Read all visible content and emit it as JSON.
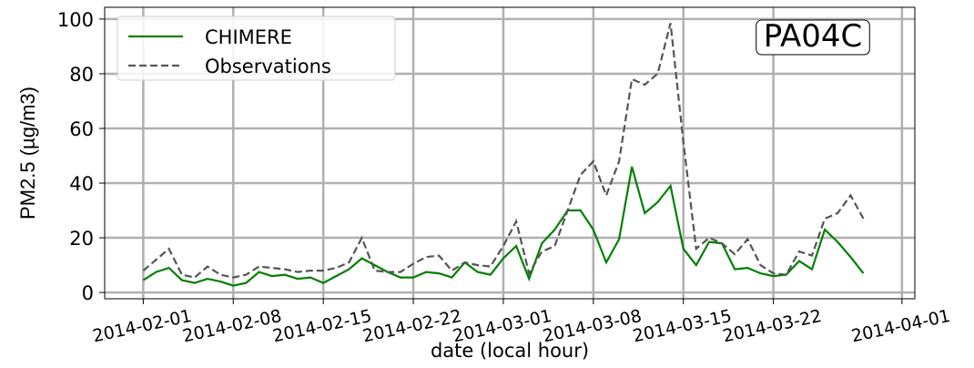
{
  "chart_data": {
    "type": "line",
    "title": "PA04C",
    "xlabel": "date (local hour)",
    "ylabel": "PM2.5 (µg/m3)",
    "x": [
      "2014-02-01",
      "2014-02-02",
      "2014-02-03",
      "2014-02-04",
      "2014-02-05",
      "2014-02-06",
      "2014-02-07",
      "2014-02-08",
      "2014-02-09",
      "2014-02-10",
      "2014-02-11",
      "2014-02-12",
      "2014-02-13",
      "2014-02-14",
      "2014-02-15",
      "2014-02-16",
      "2014-02-17",
      "2014-02-18",
      "2014-02-19",
      "2014-02-20",
      "2014-02-21",
      "2014-02-22",
      "2014-02-23",
      "2014-02-24",
      "2014-02-25",
      "2014-02-26",
      "2014-02-27",
      "2014-02-28",
      "2014-03-01",
      "2014-03-02",
      "2014-03-03",
      "2014-03-04",
      "2014-03-05",
      "2014-03-06",
      "2014-03-07",
      "2014-03-08",
      "2014-03-09",
      "2014-03-10",
      "2014-03-11",
      "2014-03-12",
      "2014-03-13",
      "2014-03-14",
      "2014-03-15",
      "2014-03-16",
      "2014-03-17",
      "2014-03-18",
      "2014-03-19",
      "2014-03-20",
      "2014-03-21",
      "2014-03-22",
      "2014-03-23",
      "2014-03-24",
      "2014-03-25",
      "2014-03-26",
      "2014-03-27",
      "2014-03-28",
      "2014-03-29"
    ],
    "series": [
      {
        "name": "CHIMERE",
        "color": "#008000",
        "dashed": false,
        "values": [
          4.5,
          7.5,
          9,
          4.5,
          3.5,
          5,
          4,
          2.5,
          3.5,
          7.5,
          6,
          6.5,
          5,
          5.5,
          3.5,
          6,
          8.5,
          12.5,
          10,
          7.5,
          5.5,
          5.5,
          7.5,
          7,
          5.5,
          11,
          7.5,
          6.5,
          12.5,
          17,
          5,
          18,
          23,
          30,
          30,
          23,
          11,
          19.5,
          46,
          29,
          33,
          39,
          16,
          10,
          18.5,
          18,
          8.5,
          9,
          7,
          6,
          6.5,
          11.5,
          8.5,
          23,
          18.5,
          13,
          7
        ]
      },
      {
        "name": "Observations",
        "color": "#555555",
        "dashed": true,
        "values": [
          8,
          12,
          16,
          6.5,
          5.5,
          9.5,
          6.5,
          5.5,
          6.5,
          9.5,
          9,
          8.5,
          7.5,
          8,
          8,
          9,
          11,
          20,
          8,
          7.5,
          7.5,
          10.5,
          13,
          13.5,
          8,
          11,
          10,
          9.5,
          17,
          26,
          7,
          15,
          17,
          30,
          43,
          48,
          35.5,
          48,
          78,
          76,
          80,
          98.5,
          55,
          16,
          20,
          18,
          14,
          19.5,
          10,
          7,
          6.5,
          15,
          13.5,
          27,
          29,
          35.5,
          27
        ]
      }
    ],
    "xlim": [
      "2014-01-29",
      "2014-04-02"
    ],
    "xticks": [
      "2014-02-01",
      "2014-02-08",
      "2014-02-15",
      "2014-02-22",
      "2014-03-01",
      "2014-03-08",
      "2014-03-15",
      "2014-03-22",
      "2014-04-01"
    ],
    "ylim": [
      -2.3,
      104.3
    ],
    "yticks": [
      0,
      20,
      40,
      60,
      80,
      100
    ],
    "grid": true,
    "legend": "upper left"
  }
}
